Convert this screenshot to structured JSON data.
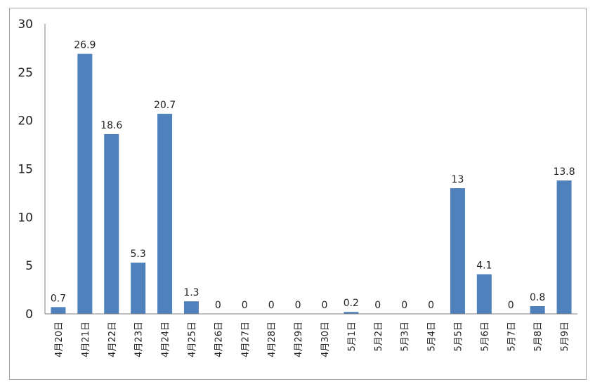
{
  "chart_data": {
    "type": "bar",
    "title": "",
    "xlabel": "",
    "ylabel": "",
    "ylim": [
      0,
      30
    ],
    "yticks": [
      0,
      5,
      10,
      15,
      20,
      25,
      30
    ],
    "grid": false,
    "legend": "none",
    "bar_color": "#4f81bd",
    "categories": [
      "4月20日",
      "4月21日",
      "4月22日",
      "4月23日",
      "4月24日",
      "4月25日",
      "4月26日",
      "4月27日",
      "4月28日",
      "4月29日",
      "4月30日",
      "5月1日",
      "5月2日",
      "5月3日",
      "5月4日",
      "5月5日",
      "5月6日",
      "5月7日",
      "5月8日",
      "5月9日"
    ],
    "values": [
      0.7,
      26.9,
      18.6,
      5.3,
      20.7,
      1.3,
      0,
      0,
      0,
      0,
      0,
      0.2,
      0,
      0,
      0,
      13,
      4.1,
      0,
      0.8,
      13.8
    ]
  }
}
